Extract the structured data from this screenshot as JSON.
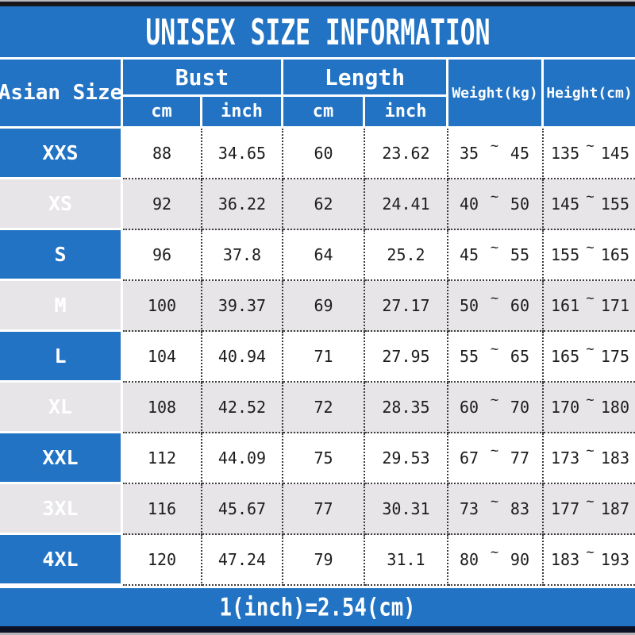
{
  "title": "UNISEX SIZE INFORMATION",
  "colors": {
    "accent_blue": "#2273c4",
    "row_alt_gray": "#e7e5e8",
    "dotted_line": "#3c3c3c",
    "top_bar_black": "#17171b",
    "bottom_bar_navy": "#0c1126"
  },
  "table": {
    "corner_label": "Asian Size",
    "bust_label": "Bust",
    "length_label": "Length",
    "weight_label": "Weight(kg)",
    "height_label": "Height(cm)",
    "sub_headers": {
      "bust_cm": "cm",
      "bust_inch": "inch",
      "length_cm": "cm",
      "length_inch": "inch"
    },
    "tilde": "~",
    "rows": [
      {
        "size": "XXS",
        "bust_cm": "88",
        "bust_inch": "34.65",
        "length_cm": "60",
        "length_inch": "23.62",
        "w_lo": "35",
        "w_hi": "45",
        "h_lo": "135",
        "h_hi": "145"
      },
      {
        "size": "XS",
        "bust_cm": "92",
        "bust_inch": "36.22",
        "length_cm": "62",
        "length_inch": "24.41",
        "w_lo": "40",
        "w_hi": "50",
        "h_lo": "145",
        "h_hi": "155"
      },
      {
        "size": "S",
        "bust_cm": "96",
        "bust_inch": "37.8",
        "length_cm": "64",
        "length_inch": "25.2",
        "w_lo": "45",
        "w_hi": "55",
        "h_lo": "155",
        "h_hi": "165"
      },
      {
        "size": "M",
        "bust_cm": "100",
        "bust_inch": "39.37",
        "length_cm": "69",
        "length_inch": "27.17",
        "w_lo": "50",
        "w_hi": "60",
        "h_lo": "161",
        "h_hi": "171"
      },
      {
        "size": "L",
        "bust_cm": "104",
        "bust_inch": "40.94",
        "length_cm": "71",
        "length_inch": "27.95",
        "w_lo": "55",
        "w_hi": "65",
        "h_lo": "165",
        "h_hi": "175"
      },
      {
        "size": "XL",
        "bust_cm": "108",
        "bust_inch": "42.52",
        "length_cm": "72",
        "length_inch": "28.35",
        "w_lo": "60",
        "w_hi": "70",
        "h_lo": "170",
        "h_hi": "180"
      },
      {
        "size": "XXL",
        "bust_cm": "112",
        "bust_inch": "44.09",
        "length_cm": "75",
        "length_inch": "29.53",
        "w_lo": "67",
        "w_hi": "77",
        "h_lo": "173",
        "h_hi": "183"
      },
      {
        "size": "3XL",
        "bust_cm": "116",
        "bust_inch": "45.67",
        "length_cm": "77",
        "length_inch": "30.31",
        "w_lo": "73",
        "w_hi": "83",
        "h_lo": "177",
        "h_hi": "187"
      },
      {
        "size": "4XL",
        "bust_cm": "120",
        "bust_inch": "47.24",
        "length_cm": "79",
        "length_inch": "31.1",
        "w_lo": "80",
        "w_hi": "90",
        "h_lo": "183",
        "h_hi": "193"
      }
    ]
  },
  "footer": {
    "note": "1(inch)=2.54(cm)"
  }
}
